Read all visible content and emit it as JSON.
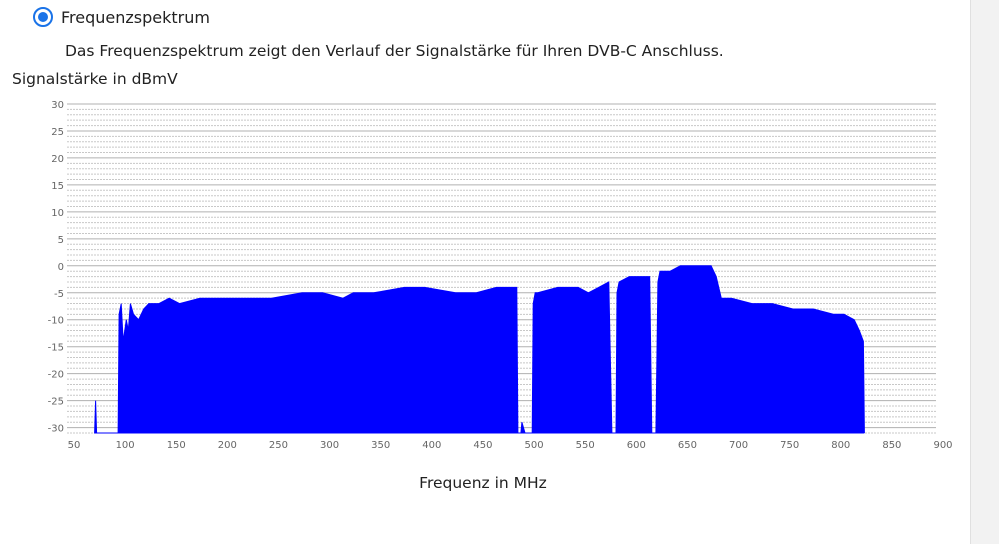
{
  "option": {
    "label": "Frequenzspektrum",
    "selected": true,
    "icon": "radio-selected-icon"
  },
  "description": "Das Frequenzspektrum zeigt den Verlauf der Signalstärke für Ihren DVB-C Anschluss.",
  "colors": {
    "accent": "#1a73e8",
    "series": "#0000ff",
    "grid": "#c8c8c8"
  },
  "chart_data": {
    "type": "area",
    "xlabel": "Frequenz in MHz",
    "ylabel": "Signalstärke in dBmV",
    "xlim": [
      50,
      900
    ],
    "ylim": [
      -31,
      30
    ],
    "x_ticks": [
      50,
      100,
      150,
      200,
      250,
      300,
      350,
      400,
      450,
      500,
      550,
      600,
      650,
      700,
      750,
      800,
      850,
      900
    ],
    "y_ticks": [
      30,
      25,
      20,
      15,
      10,
      5,
      0,
      -5,
      -10,
      -15,
      -20,
      -25,
      -30
    ],
    "grid": true,
    "legend": "none",
    "series": [
      {
        "x": [
          77,
          78,
          79,
          100,
          101,
          103,
          105,
          108,
          110,
          112,
          115,
          120,
          125,
          130,
          140,
          150,
          160,
          180,
          200,
          220,
          250,
          280,
          300,
          320,
          330,
          340,
          350,
          380,
          400,
          430,
          450,
          470,
          480,
          490,
          491,
          494,
          495,
          498,
          500,
          505,
          506,
          508,
          510,
          530,
          550,
          560,
          570,
          580,
          583,
          584,
          587,
          588,
          590,
          600,
          620,
          622,
          624,
          626,
          628,
          630,
          640,
          650,
          660,
          670,
          680,
          685,
          690,
          700,
          720,
          740,
          760,
          780,
          800,
          810,
          820,
          825,
          829,
          830
        ],
        "y": [
          -31,
          -25,
          -31,
          -31,
          -9,
          -7,
          -14,
          -10,
          -12,
          -7,
          -9,
          -10,
          -8,
          -7,
          -7,
          -6,
          -7,
          -6,
          -6,
          -6,
          -6,
          -5,
          -5,
          -6,
          -5,
          -5,
          -5,
          -4,
          -4,
          -5,
          -5,
          -4,
          -4,
          -4,
          -31,
          -31,
          -29,
          -31,
          -31,
          -31,
          -7,
          -5,
          -5,
          -4,
          -4,
          -5,
          -4,
          -3,
          -31,
          -31,
          -31,
          -5,
          -3,
          -2,
          -2,
          -31,
          -31,
          -31,
          -3,
          -1,
          -1,
          0,
          0,
          0,
          0,
          -2,
          -6,
          -6,
          -7,
          -7,
          -8,
          -8,
          -9,
          -9,
          -10,
          -12,
          -14,
          -31
        ]
      }
    ]
  }
}
